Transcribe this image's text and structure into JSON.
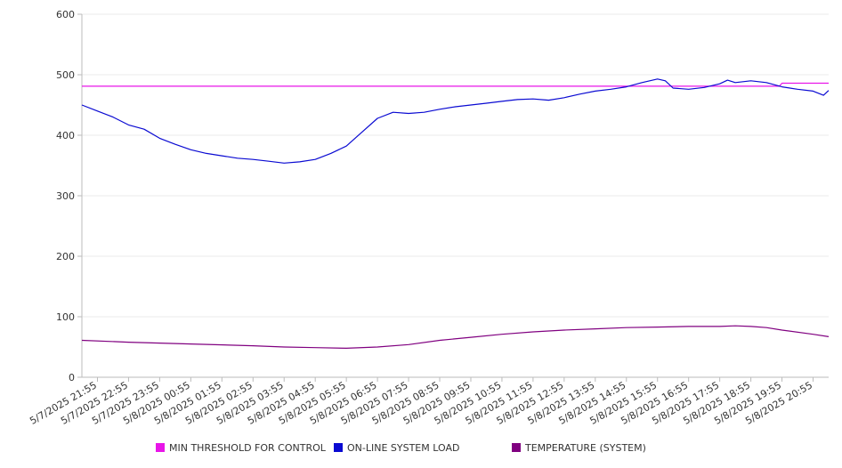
{
  "chart_data": {
    "type": "line",
    "title": "",
    "xlabel": "",
    "ylabel": "",
    "ylim": [
      0,
      600
    ],
    "yticks": [
      0,
      100,
      200,
      300,
      400,
      500,
      600
    ],
    "grid": "horizontal",
    "legend_position": "bottom",
    "x_tick_labels": [
      "5/7/2025 21:55",
      "5/7/2025 22:55",
      "5/7/2025 23:55",
      "5/8/2025 00:55",
      "5/8/2025 01:55",
      "5/8/2025 02:55",
      "5/8/2025 03:55",
      "5/8/2025 04:55",
      "5/8/2025 05:55",
      "5/8/2025 06:55",
      "5/8/2025 07:55",
      "5/8/2025 08:55",
      "5/8/2025 09:55",
      "5/8/2025 10:55",
      "5/8/2025 11:55",
      "5/8/2025 12:55",
      "5/8/2025 13:55",
      "5/8/2025 14:55",
      "5/8/2025 15:55",
      "5/8/2025 16:55",
      "5/8/2025 17:55",
      "5/8/2025 18:55",
      "5/8/2025 19:55",
      "5/8/2025 20:55"
    ],
    "x_range": [
      "5/7/2025 21:25",
      "5/8/2025 21:25"
    ],
    "series": [
      {
        "name": "MIN THRESHOLD FOR CONTROL",
        "color": "#e815e8",
        "points": [
          [
            "5/7/2025 21:25",
            481
          ],
          [
            "5/8/2025 19:50",
            481
          ],
          [
            "5/8/2025 19:55",
            486
          ],
          [
            "5/8/2025 21:25",
            486
          ]
        ]
      },
      {
        "name": "ON-LINE SYSTEM LOAD",
        "color": "#0a0ad2",
        "points": [
          [
            "5/7/2025 21:25",
            450
          ],
          [
            "5/7/2025 21:55",
            440
          ],
          [
            "5/7/2025 22:25",
            430
          ],
          [
            "5/7/2025 22:55",
            417
          ],
          [
            "5/7/2025 23:25",
            410
          ],
          [
            "5/7/2025 23:55",
            395
          ],
          [
            "5/8/2025 00:25",
            385
          ],
          [
            "5/8/2025 00:55",
            376
          ],
          [
            "5/8/2025 01:25",
            370
          ],
          [
            "5/8/2025 01:55",
            366
          ],
          [
            "5/8/2025 02:25",
            362
          ],
          [
            "5/8/2025 02:55",
            360
          ],
          [
            "5/8/2025 03:25",
            357
          ],
          [
            "5/8/2025 03:55",
            354
          ],
          [
            "5/8/2025 04:25",
            356
          ],
          [
            "5/8/2025 04:55",
            360
          ],
          [
            "5/8/2025 05:25",
            370
          ],
          [
            "5/8/2025 05:55",
            382
          ],
          [
            "5/8/2025 06:25",
            405
          ],
          [
            "5/8/2025 06:55",
            428
          ],
          [
            "5/8/2025 07:25",
            438
          ],
          [
            "5/8/2025 07:55",
            436
          ],
          [
            "5/8/2025 08:25",
            438
          ],
          [
            "5/8/2025 08:55",
            443
          ],
          [
            "5/8/2025 09:25",
            447
          ],
          [
            "5/8/2025 09:55",
            450
          ],
          [
            "5/8/2025 10:25",
            453
          ],
          [
            "5/8/2025 10:55",
            456
          ],
          [
            "5/8/2025 11:25",
            459
          ],
          [
            "5/8/2025 11:55",
            460
          ],
          [
            "5/8/2025 12:25",
            458
          ],
          [
            "5/8/2025 12:55",
            462
          ],
          [
            "5/8/2025 13:25",
            468
          ],
          [
            "5/8/2025 13:55",
            473
          ],
          [
            "5/8/2025 14:25",
            476
          ],
          [
            "5/8/2025 14:55",
            480
          ],
          [
            "5/8/2025 15:25",
            487
          ],
          [
            "5/8/2025 15:55",
            493
          ],
          [
            "5/8/2025 16:10",
            490
          ],
          [
            "5/8/2025 16:25",
            478
          ],
          [
            "5/8/2025 16:55",
            476
          ],
          [
            "5/8/2025 17:25",
            479
          ],
          [
            "5/8/2025 17:55",
            485
          ],
          [
            "5/8/2025 18:10",
            491
          ],
          [
            "5/8/2025 18:25",
            487
          ],
          [
            "5/8/2025 18:55",
            490
          ],
          [
            "5/8/2025 19:25",
            487
          ],
          [
            "5/8/2025 19:55",
            480
          ],
          [
            "5/8/2025 20:25",
            476
          ],
          [
            "5/8/2025 20:55",
            473
          ],
          [
            "5/8/2025 21:15",
            466
          ],
          [
            "5/8/2025 21:25",
            474
          ]
        ]
      },
      {
        "name": "TEMPERATURE (SYSTEM)",
        "color": "#800080",
        "points": [
          [
            "5/7/2025 21:25",
            61
          ],
          [
            "5/7/2025 22:55",
            58
          ],
          [
            "5/8/2025 00:55",
            55
          ],
          [
            "5/8/2025 02:55",
            52
          ],
          [
            "5/8/2025 03:55",
            50
          ],
          [
            "5/8/2025 04:55",
            49
          ],
          [
            "5/8/2025 05:55",
            48
          ],
          [
            "5/8/2025 06:55",
            50
          ],
          [
            "5/8/2025 07:55",
            54
          ],
          [
            "5/8/2025 08:55",
            61
          ],
          [
            "5/8/2025 09:55",
            66
          ],
          [
            "5/8/2025 10:55",
            71
          ],
          [
            "5/8/2025 11:55",
            75
          ],
          [
            "5/8/2025 12:55",
            78
          ],
          [
            "5/8/2025 13:55",
            80
          ],
          [
            "5/8/2025 14:55",
            82
          ],
          [
            "5/8/2025 15:55",
            83
          ],
          [
            "5/8/2025 16:55",
            84
          ],
          [
            "5/8/2025 17:55",
            84
          ],
          [
            "5/8/2025 18:25",
            85
          ],
          [
            "5/8/2025 18:55",
            84
          ],
          [
            "5/8/2025 19:25",
            82
          ],
          [
            "5/8/2025 19:55",
            78
          ],
          [
            "5/8/2025 20:55",
            71
          ],
          [
            "5/8/2025 21:25",
            67
          ]
        ]
      }
    ]
  }
}
